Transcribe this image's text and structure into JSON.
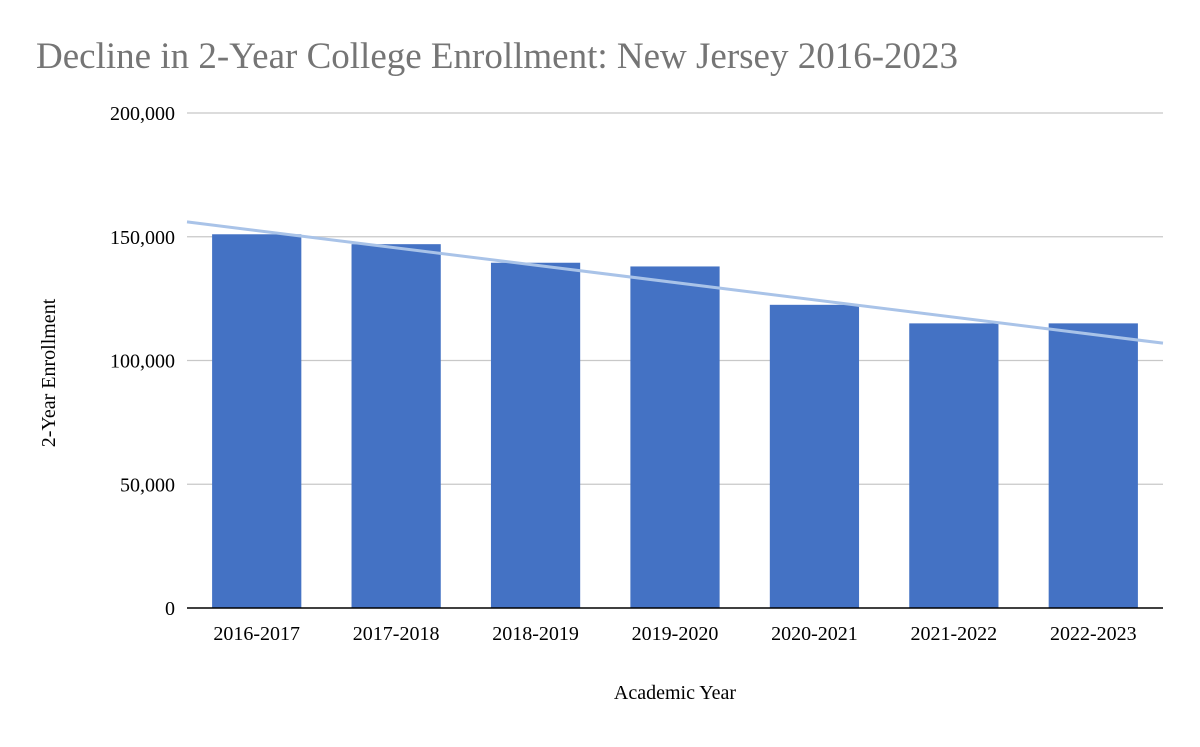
{
  "colors": {
    "bar": "#4472c4",
    "trendline": "#a9c3e8",
    "grid": "#c8c8c8",
    "axis": "#000000",
    "title": "#757575"
  },
  "chart_data": {
    "type": "bar",
    "title": "Decline in 2-Year College Enrollment: New Jersey 2016-2023",
    "xlabel": "Academic Year",
    "ylabel": "2-Year Enrollment",
    "categories": [
      "2016-2017",
      "2017-2018",
      "2018-2019",
      "2019-2020",
      "2020-2021",
      "2021-2022",
      "2022-2023"
    ],
    "series": [
      {
        "values": [
          151000,
          147000,
          139500,
          138000,
          122500,
          115000,
          115000
        ]
      }
    ],
    "ylim": [
      0,
      200000
    ],
    "yticks": [
      0,
      50000,
      100000,
      150000,
      200000
    ],
    "ytick_labels": [
      "0",
      "50,000",
      "100,000",
      "150,000",
      "200,000"
    ],
    "trendline": {
      "type": "linear",
      "start": 156000,
      "end": 107000
    },
    "grid": true,
    "legend": "none"
  }
}
